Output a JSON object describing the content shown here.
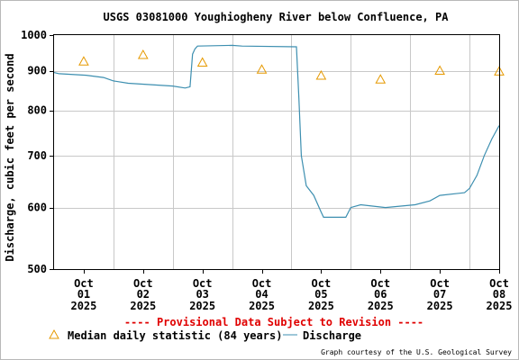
{
  "chart_data": {
    "type": "line",
    "title": "USGS 03081000 Youghiogheny River below Confluence, PA",
    "ylabel": "Discharge, cubic feet per second",
    "y_scale": "log",
    "ylim": [
      500,
      1000
    ],
    "y_ticks": [
      500,
      600,
      700,
      800,
      900,
      1000
    ],
    "x_range": [
      "2025-10-01T00:00",
      "2025-10-08T12:00"
    ],
    "x_ticks": [
      {
        "date": "2025-10-01",
        "month": "Oct",
        "day": "01",
        "year": "2025"
      },
      {
        "date": "2025-10-02",
        "month": "Oct",
        "day": "02",
        "year": "2025"
      },
      {
        "date": "2025-10-03",
        "month": "Oct",
        "day": "03",
        "year": "2025"
      },
      {
        "date": "2025-10-04",
        "month": "Oct",
        "day": "04",
        "year": "2025"
      },
      {
        "date": "2025-10-05",
        "month": "Oct",
        "day": "05",
        "year": "2025"
      },
      {
        "date": "2025-10-06",
        "month": "Oct",
        "day": "06",
        "year": "2025"
      },
      {
        "date": "2025-10-07",
        "month": "Oct",
        "day": "07",
        "year": "2025"
      },
      {
        "date": "2025-10-08",
        "month": "Oct",
        "day": "08",
        "year": "2025"
      }
    ],
    "grid": true,
    "legend_position": "bottom",
    "series": [
      {
        "name": "Median daily statistic (84 years)",
        "marker": "triangle",
        "color": "#e69900",
        "points": [
          [
            "2025-10-01T12:00",
            925
          ],
          [
            "2025-10-02T12:00",
            943
          ],
          [
            "2025-10-03T12:00",
            922
          ],
          [
            "2025-10-04T12:00",
            903
          ],
          [
            "2025-10-05T12:00",
            887
          ],
          [
            "2025-10-06T12:00",
            877
          ],
          [
            "2025-10-07T12:00",
            900
          ],
          [
            "2025-10-08T12:00",
            898
          ]
        ]
      },
      {
        "name": "Discharge",
        "marker": "line",
        "color": "#3d8fb0",
        "points": [
          [
            "2025-10-01T00:00",
            895
          ],
          [
            "2025-10-01T02:00",
            892
          ],
          [
            "2025-10-01T13:00",
            888
          ],
          [
            "2025-10-01T20:00",
            882
          ],
          [
            "2025-10-02T00:00",
            873
          ],
          [
            "2025-10-02T06:00",
            867
          ],
          [
            "2025-10-03T00:00",
            860
          ],
          [
            "2025-10-03T05:00",
            855
          ],
          [
            "2025-10-03T07:00",
            858
          ],
          [
            "2025-10-03T08:00",
            945
          ],
          [
            "2025-10-03T09:00",
            960
          ],
          [
            "2025-10-03T10:00",
            968
          ],
          [
            "2025-10-04T00:00",
            970
          ],
          [
            "2025-10-04T04:00",
            968
          ],
          [
            "2025-10-05T02:00",
            966
          ],
          [
            "2025-10-05T03:00",
            830
          ],
          [
            "2025-10-05T04:00",
            700
          ],
          [
            "2025-10-05T06:00",
            640
          ],
          [
            "2025-10-05T09:00",
            622
          ],
          [
            "2025-10-05T12:00",
            592
          ],
          [
            "2025-10-05T13:00",
            583
          ],
          [
            "2025-10-05T22:00",
            583
          ],
          [
            "2025-10-06T00:00",
            600
          ],
          [
            "2025-10-06T04:00",
            605
          ],
          [
            "2025-10-06T14:00",
            600
          ],
          [
            "2025-10-07T02:00",
            605
          ],
          [
            "2025-10-07T08:00",
            612
          ],
          [
            "2025-10-07T12:00",
            622
          ],
          [
            "2025-10-07T22:00",
            627
          ],
          [
            "2025-10-08T00:00",
            635
          ],
          [
            "2025-10-08T03:00",
            660
          ],
          [
            "2025-10-08T06:00",
            700
          ],
          [
            "2025-10-08T09:00",
            735
          ],
          [
            "2025-10-08T12:00",
            765
          ]
        ]
      }
    ],
    "annotation": "---- Provisional Data Subject to Revision ----",
    "credit": "Graph courtesy of the U.S. Geological Survey"
  }
}
